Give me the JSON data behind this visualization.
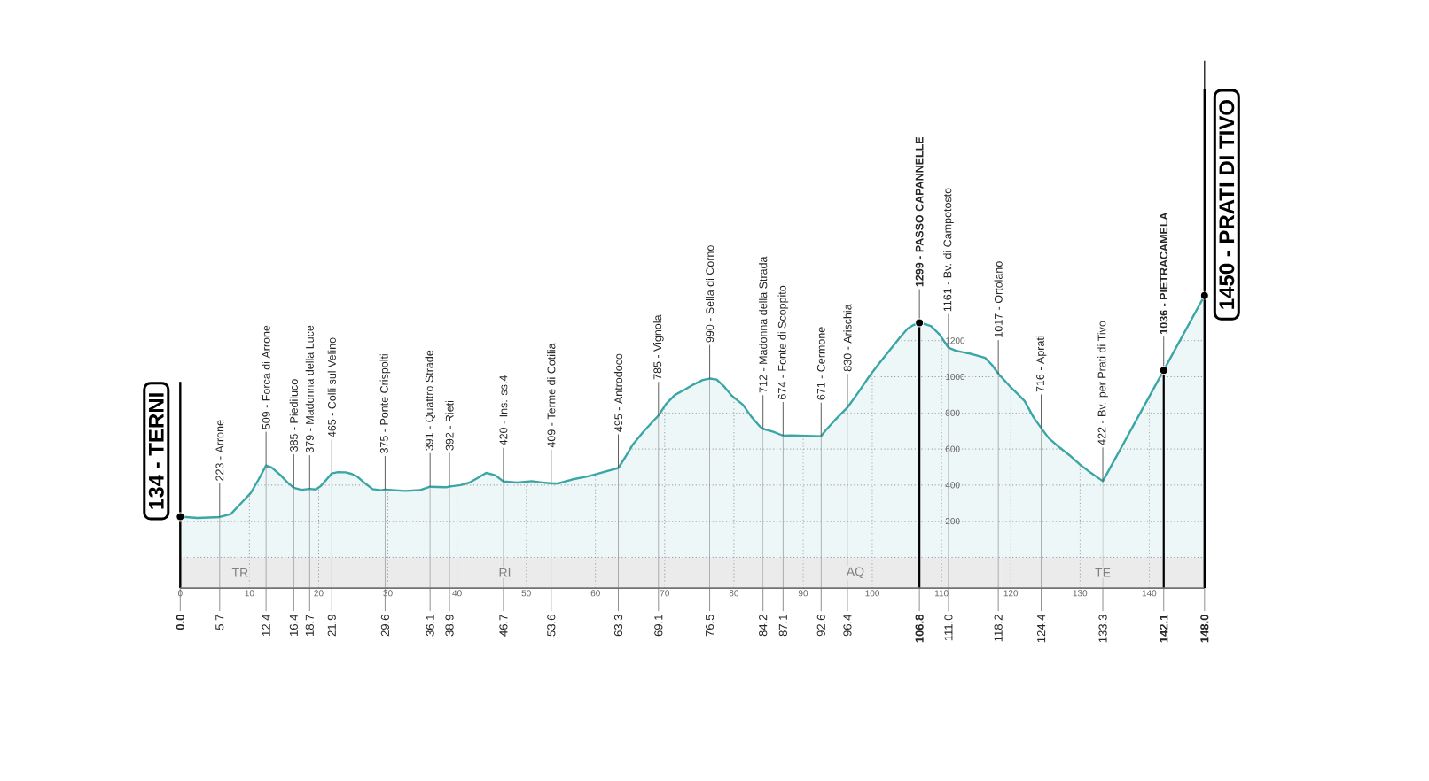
{
  "chart_data": {
    "type": "area",
    "x": [
      0,
      2.5,
      5.7,
      7.3,
      8.8,
      10.2,
      11.3,
      12.4,
      13.2,
      14.5,
      15.5,
      16.4,
      17.5,
      18.7,
      19.6,
      20.3,
      21.0,
      21.9,
      22.8,
      23.9,
      24.8,
      25.6,
      26.7,
      27.8,
      29.0,
      29.6,
      32.5,
      34.6,
      36.1,
      38.4,
      38.9,
      40.5,
      41.8,
      43.2,
      44.2,
      45.5,
      46.7,
      48.7,
      50.8,
      52.0,
      53.6,
      54.6,
      56.6,
      58.8,
      60.0,
      61.5,
      63.3,
      64.3,
      65.4,
      66.9,
      68.5,
      69.1,
      70.2,
      71.5,
      72.9,
      74.2,
      75.5,
      76.5,
      77.5,
      78.6,
      79.7,
      81.3,
      82.5,
      83.7,
      84.2,
      85.7,
      87.1,
      88.3,
      90.5,
      92.6,
      93.2,
      94.6,
      96.4,
      98.0,
      99.6,
      101.2,
      102.9,
      104.0,
      105.1,
      106.0,
      106.8,
      107.6,
      108.5,
      109.7,
      110.4,
      111.0,
      112.0,
      113.0,
      114.5,
      116.3,
      117.3,
      118.2,
      119.9,
      121.0,
      122.0,
      123.3,
      124.4,
      125.5,
      127.0,
      128.5,
      130.0,
      131.5,
      133.3,
      142.1,
      148.0
    ],
    "values": [
      225,
      218,
      223,
      239,
      300,
      357,
      430,
      509,
      498,
      455,
      415,
      385,
      374,
      379,
      376,
      395,
      425,
      465,
      472,
      471,
      462,
      447,
      410,
      378,
      372,
      375,
      368,
      372,
      391,
      388,
      392,
      400,
      414,
      445,
      468,
      455,
      420,
      414,
      422,
      416,
      409,
      409,
      431,
      448,
      460,
      476,
      495,
      555,
      625,
      695,
      761,
      785,
      850,
      900,
      929,
      958,
      982,
      990,
      985,
      945,
      895,
      845,
      780,
      727,
      712,
      695,
      674,
      675,
      673,
      671,
      701,
      760,
      830,
      915,
      1005,
      1085,
      1166,
      1218,
      1267,
      1288,
      1299,
      1292,
      1280,
      1235,
      1195,
      1161,
      1145,
      1137,
      1125,
      1105,
      1065,
      1017,
      946,
      905,
      866,
      775,
      716,
      660,
      610,
      565,
      514,
      470,
      422,
      1036,
      1450
    ],
    "color": "#3ba6a6",
    "xlim": [
      0,
      148
    ],
    "xticks": [
      {
        "value": 0,
        "label": "**0.0**"
      },
      5.7,
      12.4,
      16.4,
      18.7,
      21.9,
      29.6,
      36.1,
      38.9,
      46.7,
      53.6,
      63.3,
      69.1,
      76.5,
      84.2,
      87.1,
      92.6,
      96.4,
      {
        "value": 106.8,
        "label": "**106.8**"
      },
      {
        "value": 111,
        "label": "111.0"
      },
      118.2,
      124.4,
      133.3,
      {
        "value": 142.1,
        "label": "**142.1**"
      },
      {
        "value": 148,
        "label": "**148.0**"
      }
    ],
    "x2lim": [
      0,
      148
    ],
    "x2ticks": [
      0,
      10,
      20,
      30,
      40,
      50,
      60,
      70,
      80,
      90,
      100,
      110,
      120,
      130,
      140
    ],
    "ylim": [
      -170,
      2750
    ],
    "yticks": [
      {
        "value": 0,
        "label": null
      },
      200,
      400,
      600,
      800,
      1000,
      1200
    ],
    "grid": true,
    "annotations": [
      {
        "text": "223 - Arrone",
        "x": 5.7,
        "y": 223
      },
      {
        "text": "509 - Forca di Arrone",
        "x": 12.4,
        "y": 509
      },
      {
        "text": "385 - Piediluco",
        "x": 16.4,
        "y": 385
      },
      {
        "text": "379 - Madonna della Luce",
        "x": 18.7,
        "y": 379
      },
      {
        "text": "465 - Colli sul Velino",
        "x": 21.9,
        "y": 465
      },
      {
        "text": "375 - Ponte Crispolti",
        "x": 29.6,
        "y": 375
      },
      {
        "text": "391 - Quattro Strade",
        "x": 36.1,
        "y": 391
      },
      {
        "text": "392 - Rieti",
        "x": 38.9,
        "y": 392
      },
      {
        "text": "420 - Ins. ss.4",
        "x": 46.7,
        "y": 420
      },
      {
        "text": "409 - Terme di Cotilia",
        "x": 53.6,
        "y": 409
      },
      {
        "text": "495 - Antrodoco",
        "x": 63.3,
        "y": 495
      },
      {
        "text": "785 - Vignola",
        "x": 69.1,
        "y": 785
      },
      {
        "text": "990 - Sella di Corno",
        "x": 76.5,
        "y": 990
      },
      {
        "text": "712 - Madonna della Strada",
        "x": 84.2,
        "y": 712
      },
      {
        "text": "674 - Fonte di Scoppito",
        "x": 87.1,
        "y": 674
      },
      {
        "text": "671 - Cermone",
        "x": 92.6,
        "y": 671
      },
      {
        "text": "830 - Arischia",
        "x": 96.4,
        "y": 830
      },
      {
        "text": "**1299 - PASSO CAPANNELLE**",
        "x": 106.8,
        "y": 1299
      },
      {
        "text": "1161 - Bv. di Campotosto",
        "x": 111.0,
        "y": 1161
      },
      {
        "text": "1017 - Ortolano",
        "x": 118.2,
        "y": 1017
      },
      {
        "text": "716 - Aprati",
        "x": 124.4,
        "y": 716
      },
      {
        "text": "422 - Bv. per Prati di Tivo",
        "x": 133.3,
        "y": 422
      },
      {
        "text": "**1036 - PIETRACAMELA**",
        "x": 142.1,
        "y": 1036
      }
    ],
    "ref_lines": [
      {
        "axis": "x",
        "value": 0,
        "label": "134 - TERNI"
      },
      {
        "axis": "x",
        "value": 106.8
      },
      {
        "axis": "x",
        "value": 142.1
      },
      {
        "axis": "x",
        "value": 148,
        "label": "1450 - PRATI DI TIVO"
      }
    ],
    "bands": [
      {
        "axis": "x",
        "from": 0,
        "to": 17.3,
        "label": "TR",
        "color": "#ebebeb"
      },
      {
        "axis": "x",
        "from": 17.3,
        "to": 76.5,
        "label": "RI",
        "color": "#ebebeb"
      },
      {
        "axis": "x",
        "from": 76.5,
        "to": 118.6,
        "label": "AQ",
        "color": "#ebebeb"
      },
      {
        "axis": "x",
        "from": 118.6,
        "to": 148,
        "label": "TE",
        "color": "#ebebeb"
      }
    ]
  }
}
